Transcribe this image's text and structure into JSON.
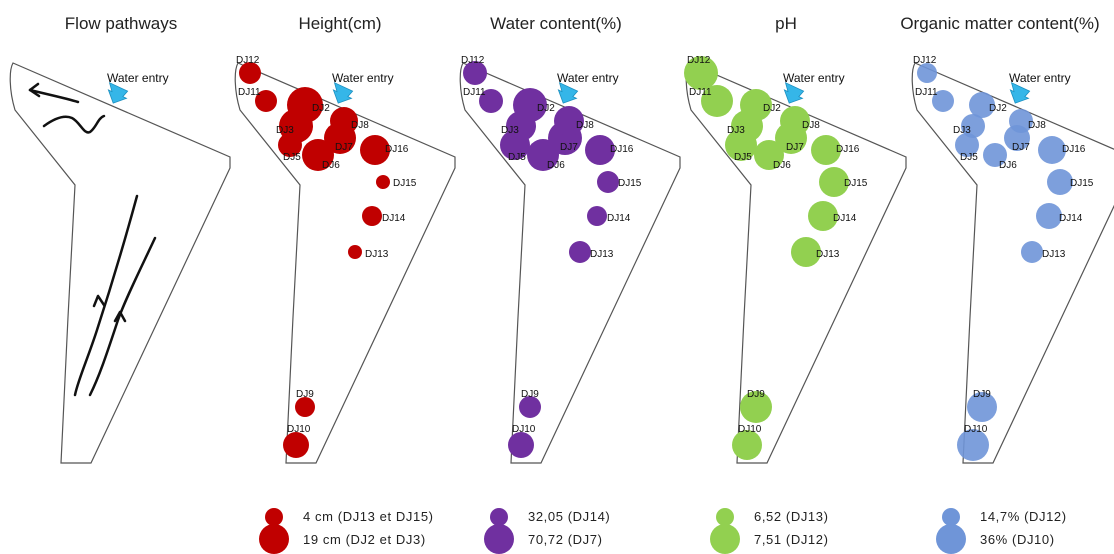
{
  "panels": [
    {
      "id": "flow",
      "title": "Flow pathways",
      "water_entry": "Water entry"
    },
    {
      "id": "height",
      "title": "Height(cm)",
      "color": "#c00000",
      "water_entry": "Water entry",
      "legend": [
        {
          "label": "4 cm (DJ13 et DJ15)",
          "size": "small"
        },
        {
          "label": "19 cm (DJ2 et DJ3)",
          "size": "large"
        }
      ]
    },
    {
      "id": "water",
      "title": "Water content(%)",
      "color": "#7030a0",
      "water_entry": "Water entry",
      "legend": [
        {
          "label": "32,05 (DJ14)",
          "size": "small"
        },
        {
          "label": "70,72 (DJ7)",
          "size": "large"
        }
      ]
    },
    {
      "id": "ph",
      "title": "pH",
      "color": "#92d050",
      "water_entry": "Water entry",
      "legend": [
        {
          "label": "6,52 (DJ13)",
          "size": "small"
        },
        {
          "label": "7,51 (DJ12)",
          "size": "large"
        }
      ]
    },
    {
      "id": "om",
      "title": "Organic matter content(%)",
      "color": "#6f95d8",
      "water_entry": "Water entry",
      "legend": [
        {
          "label": "14,7% (DJ12)",
          "size": "small"
        },
        {
          "label": "36% (DJ10)",
          "size": "large"
        }
      ]
    }
  ],
  "points": [
    "DJ2",
    "DJ3",
    "DJ5",
    "DJ6",
    "DJ7",
    "DJ8",
    "DJ9",
    "DJ10",
    "DJ11",
    "DJ12",
    "DJ13",
    "DJ14",
    "DJ15",
    "DJ16"
  ],
  "point_labels": {
    "DJ2": "DJ2",
    "DJ3": "DJ3",
    "DJ5": "DJ5",
    "DJ6": "DJ6",
    "DJ7": "DJ7",
    "DJ8": "DJ8",
    "DJ9": "DJ9",
    "DJ10": "DJ10",
    "DJ11": "DJ11",
    "DJ12": "DJ12",
    "DJ13": "DJ13",
    "DJ14": "DJ14",
    "DJ15": "DJ15",
    "DJ16": "DJ16"
  },
  "legend_summary": {
    "height": {
      "min": 4,
      "max": 19,
      "unit": "cm"
    },
    "water": {
      "min": 32.05,
      "max": 70.72,
      "unit": "%"
    },
    "ph": {
      "min": 6.52,
      "max": 7.51
    },
    "om": {
      "min": 14.7,
      "max": 36,
      "unit": "%"
    }
  },
  "colors": {
    "arrow": "#35b6e8",
    "outline": "#555555",
    "flow_lines": "#111111"
  }
}
